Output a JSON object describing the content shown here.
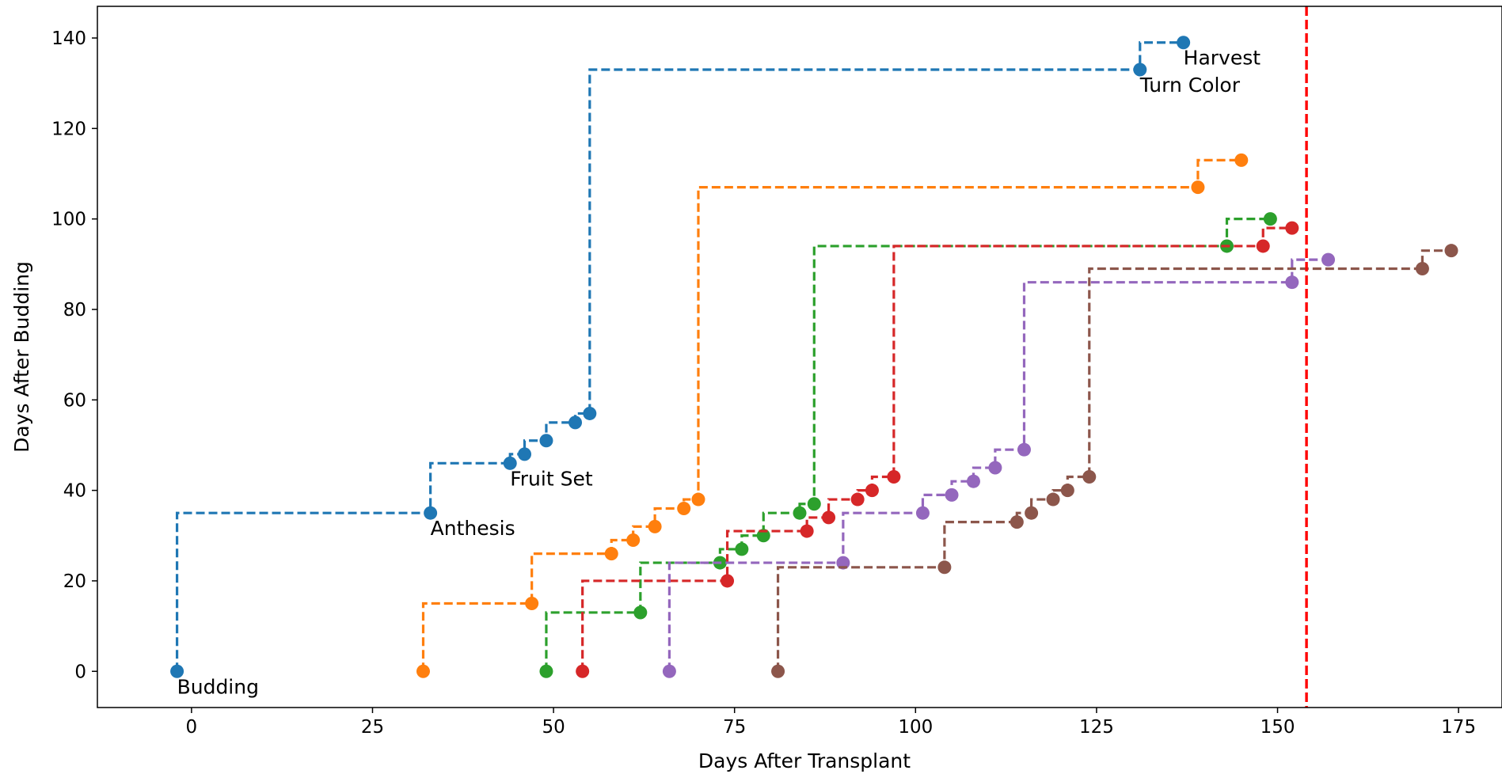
{
  "chart_data": {
    "type": "line",
    "title": "",
    "xlabel": "Days After Transplant",
    "ylabel": "Days After Budding",
    "xlim": [
      -13,
      181
    ],
    "ylim": [
      -8,
      147
    ],
    "xticks": [
      0,
      25,
      50,
      75,
      100,
      125,
      150,
      175
    ],
    "yticks": [
      0,
      20,
      40,
      60,
      80,
      100,
      120,
      140
    ],
    "step": "post",
    "line_style": "dashed",
    "grid": false,
    "legend": "none",
    "vline": {
      "x": 154,
      "color": "#ff0000",
      "style": "dashed"
    },
    "series": [
      {
        "color": "#1f77b4",
        "x": [
          -2,
          33,
          44,
          46,
          49,
          53,
          55,
          131,
          137
        ],
        "y": [
          0,
          35,
          46,
          48,
          51,
          55,
          57,
          133,
          139
        ]
      },
      {
        "color": "#ff7f0e",
        "x": [
          32,
          47,
          58,
          61,
          64,
          68,
          70,
          139,
          145
        ],
        "y": [
          0,
          15,
          26,
          29,
          32,
          36,
          38,
          107,
          113
        ]
      },
      {
        "color": "#2ca02c",
        "x": [
          49,
          62,
          73,
          76,
          79,
          84,
          86,
          143,
          149
        ],
        "y": [
          0,
          13,
          24,
          27,
          30,
          35,
          37,
          94,
          100
        ]
      },
      {
        "color": "#d62728",
        "x": [
          54,
          74,
          85,
          88,
          92,
          94,
          97,
          148,
          152
        ],
        "y": [
          0,
          20,
          31,
          34,
          38,
          40,
          43,
          94,
          98
        ]
      },
      {
        "color": "#9467bd",
        "x": [
          66,
          90,
          101,
          105,
          108,
          111,
          115,
          152,
          157
        ],
        "y": [
          0,
          24,
          35,
          39,
          42,
          45,
          49,
          86,
          91
        ]
      },
      {
        "color": "#8c564b",
        "x": [
          81,
          104,
          114,
          116,
          119,
          121,
          124,
          170,
          174
        ],
        "y": [
          0,
          23,
          33,
          35,
          38,
          40,
          43,
          89,
          93
        ]
      }
    ],
    "annotations": [
      {
        "text": "Budding",
        "x": -2,
        "y": 0
      },
      {
        "text": "Anthesis",
        "x": 33,
        "y": 35
      },
      {
        "text": "Fruit Set",
        "x": 44,
        "y": 46
      },
      {
        "text": "Turn Color",
        "x": 131,
        "y": 133
      },
      {
        "text": "Harvest",
        "x": 137,
        "y": 139
      }
    ]
  }
}
